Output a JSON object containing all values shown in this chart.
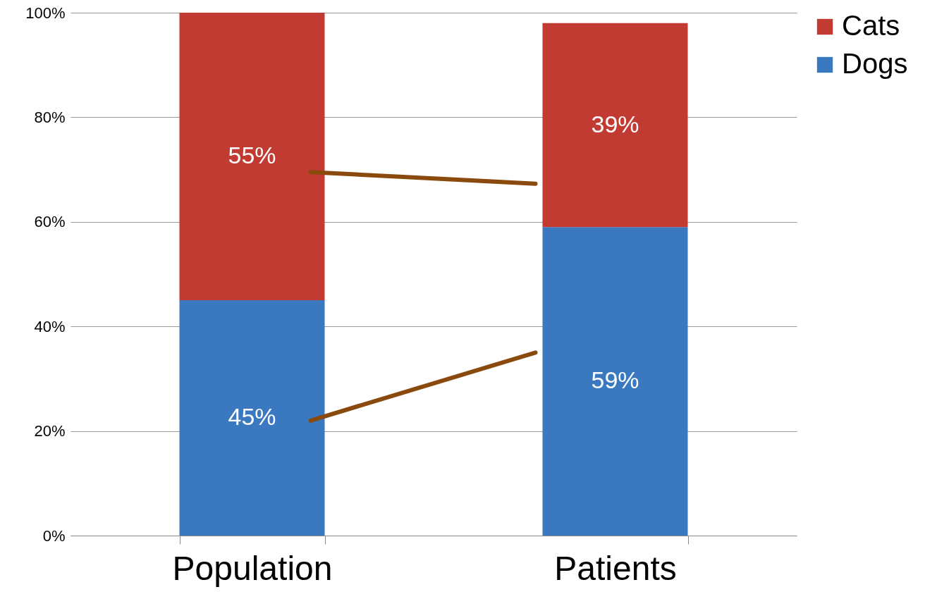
{
  "chart_data": {
    "type": "bar",
    "stacked": true,
    "categories": [
      "Population",
      "Patients"
    ],
    "series": [
      {
        "name": "Dogs",
        "color": "#3a78c0",
        "values": [
          45,
          59
        ],
        "value_labels": [
          "45%",
          "59%"
        ]
      },
      {
        "name": "Cats",
        "color": "#c23b33",
        "values": [
          55,
          39
        ],
        "value_labels": [
          "55%",
          "39%"
        ]
      }
    ],
    "ylim": [
      0,
      100
    ],
    "yticks": [
      {
        "value": 0,
        "label": "0%"
      },
      {
        "value": 20,
        "label": "20%"
      },
      {
        "value": 40,
        "label": "40%"
      },
      {
        "value": 60,
        "label": "60%"
      },
      {
        "value": 80,
        "label": "80%"
      },
      {
        "value": 100,
        "label": "100%"
      }
    ],
    "grid": "y",
    "legend": "right"
  }
}
